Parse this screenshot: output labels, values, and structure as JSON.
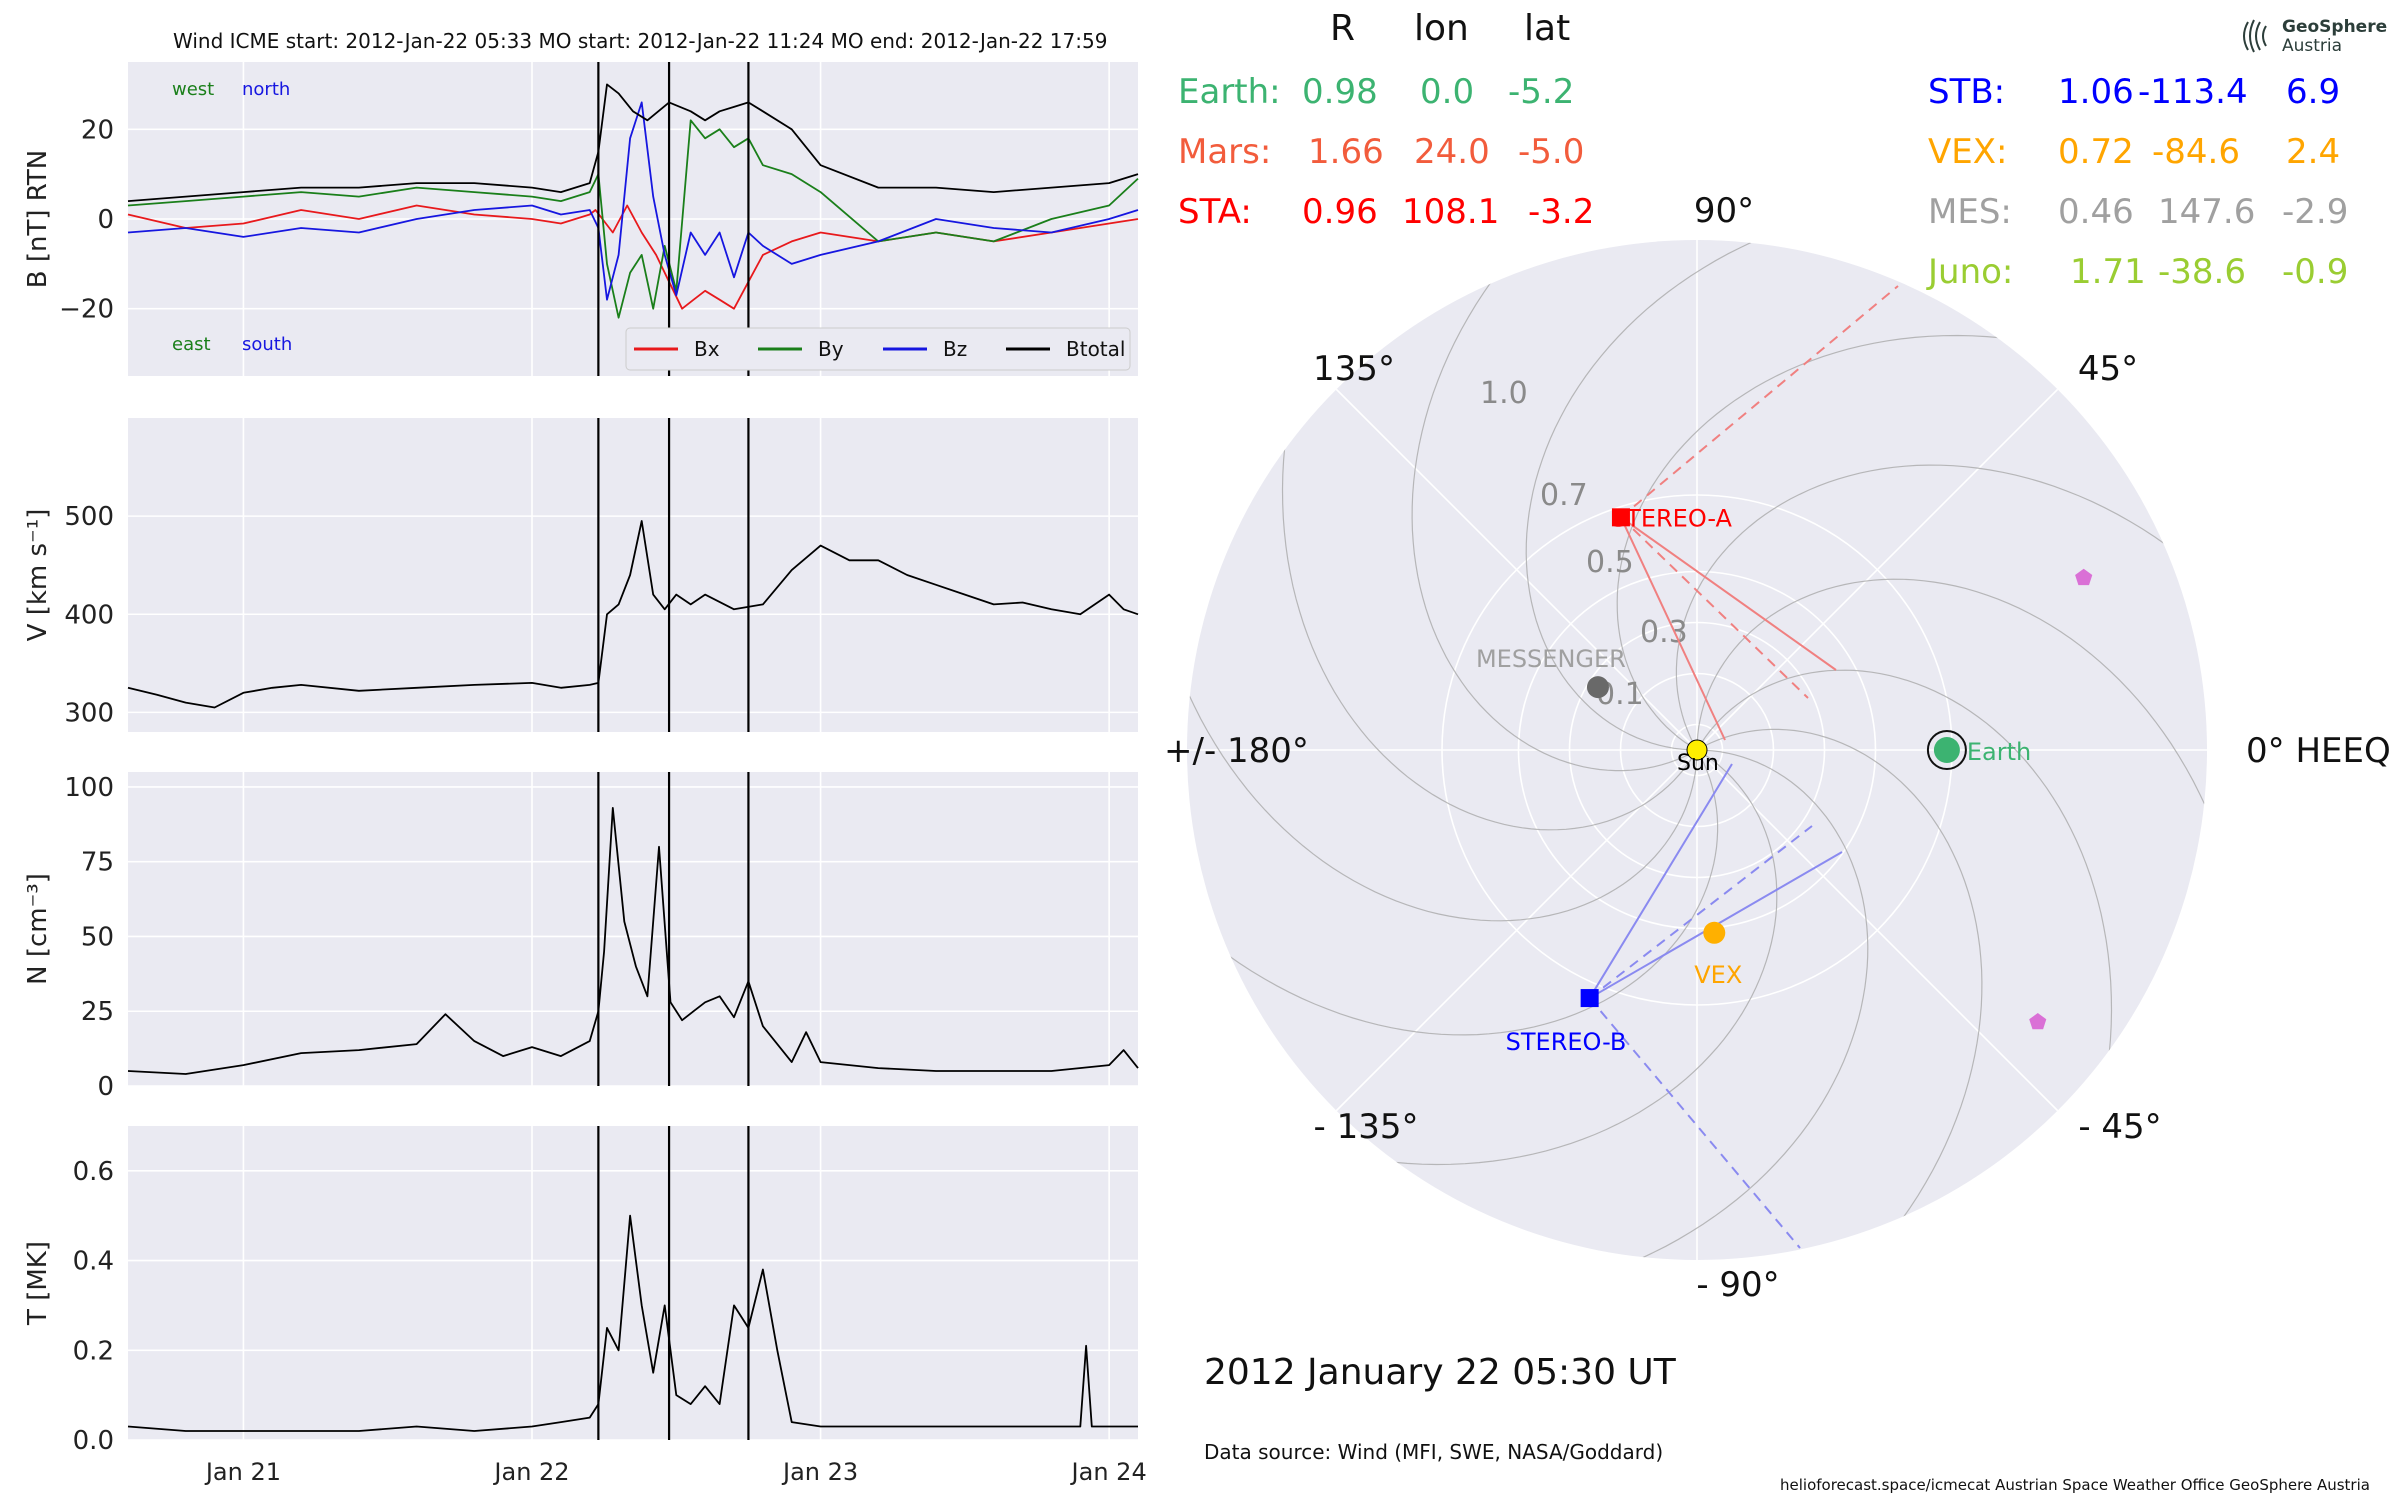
{
  "chart_data": [
    {
      "type": "line",
      "title": "Wind    ICME start: 2012-Jan-22 05:33   MO start: 2012-Jan-22 11:24   MO end: 2012-Jan-22 17:59",
      "ylabel": "B [nT] RTN",
      "ylim": [
        -35,
        35
      ],
      "yticks": [
        -20,
        0,
        20
      ],
      "xlim_days": [
        20.6,
        24.1
      ],
      "annotations": {
        "west": "west",
        "north": "north",
        "east": "east",
        "south": "south"
      },
      "legend": {
        "placement": "bottom-right",
        "entries": [
          "Bx",
          "By",
          "Bz",
          "Btotal"
        ]
      },
      "vlines_days": [
        22.23,
        22.475,
        22.75
      ],
      "series": [
        {
          "name": "Bx",
          "color": "#e8191c",
          "x": [
            20.6,
            20.8,
            21.0,
            21.2,
            21.4,
            21.6,
            21.8,
            22.0,
            22.1,
            22.2,
            22.22,
            22.28,
            22.33,
            22.38,
            22.43,
            22.475,
            22.52,
            22.56,
            22.6,
            22.65,
            22.7,
            22.75,
            22.8,
            22.9,
            23.0,
            23.2,
            23.4,
            23.6,
            23.8,
            24.0,
            24.1
          ],
          "values": [
            1,
            -2,
            -1,
            2,
            0,
            3,
            1,
            0,
            -1,
            1,
            2,
            -3,
            3,
            -3,
            -8,
            -14,
            -20,
            -18,
            -16,
            -18,
            -20,
            -14,
            -8,
            -5,
            -3,
            -5,
            -3,
            -5,
            -3,
            -1,
            0
          ]
        },
        {
          "name": "By",
          "color": "#1a7f1a",
          "x": [
            20.6,
            20.8,
            21.0,
            21.2,
            21.4,
            21.6,
            21.8,
            22.0,
            22.1,
            22.2,
            22.23,
            22.26,
            22.3,
            22.34,
            22.38,
            22.42,
            22.46,
            22.5,
            22.55,
            22.6,
            22.65,
            22.7,
            22.75,
            22.8,
            22.9,
            23.0,
            23.2,
            23.4,
            23.6,
            23.8,
            24.0,
            24.1
          ],
          "values": [
            3,
            4,
            5,
            6,
            5,
            7,
            6,
            5,
            4,
            6,
            10,
            -10,
            -22,
            -12,
            -8,
            -20,
            -6,
            -16,
            22,
            18,
            20,
            16,
            18,
            12,
            10,
            6,
            -5,
            -3,
            -5,
            0,
            3,
            9
          ]
        },
        {
          "name": "Bz",
          "color": "#1616e0",
          "x": [
            20.6,
            20.8,
            21.0,
            21.2,
            21.4,
            21.6,
            21.8,
            22.0,
            22.1,
            22.2,
            22.23,
            22.26,
            22.3,
            22.34,
            22.38,
            22.42,
            22.46,
            22.5,
            22.55,
            22.6,
            22.65,
            22.7,
            22.75,
            22.8,
            22.9,
            23.0,
            23.2,
            23.4,
            23.6,
            23.8,
            24.0,
            24.1
          ],
          "values": [
            -3,
            -2,
            -4,
            -2,
            -3,
            0,
            2,
            3,
            1,
            2,
            -2,
            -18,
            -8,
            18,
            26,
            5,
            -8,
            -17,
            -3,
            -8,
            -3,
            -13,
            -3,
            -6,
            -10,
            -8,
            -5,
            0,
            -2,
            -3,
            0,
            2
          ]
        },
        {
          "name": "Btotal",
          "color": "#000000",
          "x": [
            20.6,
            20.8,
            21.0,
            21.2,
            21.4,
            21.6,
            21.8,
            22.0,
            22.1,
            22.2,
            22.23,
            22.26,
            22.3,
            22.35,
            22.4,
            22.475,
            22.55,
            22.6,
            22.65,
            22.7,
            22.75,
            22.8,
            22.9,
            23.0,
            23.2,
            23.4,
            23.6,
            23.8,
            24.0,
            24.1
          ],
          "values": [
            4,
            5,
            6,
            7,
            7,
            8,
            8,
            7,
            6,
            8,
            15,
            30,
            28,
            24,
            22,
            26,
            24,
            22,
            24,
            25,
            26,
            24,
            20,
            12,
            7,
            7,
            6,
            7,
            8,
            10
          ]
        }
      ]
    },
    {
      "type": "line",
      "ylabel": "V [km s⁻¹]",
      "ylim": [
        280,
        600
      ],
      "yticks": [
        300,
        400,
        500
      ],
      "xlim_days": [
        20.6,
        24.1
      ],
      "vlines_days": [
        22.23,
        22.475,
        22.75
      ],
      "series": [
        {
          "color": "#000000",
          "x": [
            20.6,
            20.7,
            20.8,
            20.9,
            21.0,
            21.1,
            21.2,
            21.4,
            21.6,
            21.8,
            22.0,
            22.1,
            22.2,
            22.23,
            22.26,
            22.3,
            22.34,
            22.38,
            22.42,
            22.46,
            22.5,
            22.55,
            22.6,
            22.7,
            22.8,
            22.9,
            23.0,
            23.1,
            23.2,
            23.3,
            23.4,
            23.5,
            23.6,
            23.7,
            23.8,
            23.9,
            24.0,
            24.05,
            24.1
          ],
          "values": [
            325,
            318,
            310,
            305,
            320,
            325,
            328,
            322,
            325,
            328,
            330,
            325,
            328,
            330,
            400,
            410,
            440,
            495,
            420,
            405,
            420,
            410,
            420,
            405,
            410,
            445,
            470,
            455,
            455,
            440,
            430,
            420,
            410,
            412,
            405,
            400,
            420,
            405,
            400
          ]
        }
      ]
    },
    {
      "type": "line",
      "ylabel": "N [cm⁻³]",
      "ylim": [
        0,
        105
      ],
      "yticks": [
        0,
        25,
        50,
        75,
        100
      ],
      "xlim_days": [
        20.6,
        24.1
      ],
      "vlines_days": [
        22.23,
        22.475,
        22.75
      ],
      "series": [
        {
          "color": "#000000",
          "x": [
            20.6,
            20.8,
            21.0,
            21.2,
            21.4,
            21.6,
            21.7,
            21.8,
            21.9,
            22.0,
            22.1,
            22.2,
            22.23,
            22.25,
            22.28,
            22.32,
            22.36,
            22.4,
            22.44,
            22.48,
            22.52,
            22.56,
            22.6,
            22.65,
            22.7,
            22.75,
            22.8,
            22.9,
            22.95,
            23.0,
            23.2,
            23.4,
            23.6,
            23.8,
            24.0,
            24.05,
            24.1
          ],
          "values": [
            5,
            4,
            7,
            11,
            12,
            14,
            24,
            15,
            10,
            13,
            10,
            15,
            25,
            45,
            93,
            55,
            40,
            30,
            80,
            28,
            22,
            25,
            28,
            30,
            23,
            35,
            20,
            8,
            18,
            8,
            6,
            5,
            5,
            5,
            7,
            12,
            6
          ]
        }
      ]
    },
    {
      "type": "line",
      "ylabel": "T [MK]",
      "ylim": [
        0,
        0.7
      ],
      "yticks": [
        0.0,
        0.2,
        0.4,
        0.6
      ],
      "xlabel": "",
      "xticks": [
        "Jan 21",
        "Jan 22",
        "Jan 23",
        "Jan 24"
      ],
      "xtick_days": [
        21,
        22,
        23,
        24
      ],
      "xlim_days": [
        20.6,
        24.1
      ],
      "vlines_days": [
        22.23,
        22.475,
        22.75
      ],
      "series": [
        {
          "color": "#000000",
          "x": [
            20.6,
            20.8,
            21.0,
            21.2,
            21.4,
            21.6,
            21.8,
            22.0,
            22.1,
            22.2,
            22.23,
            22.26,
            22.3,
            22.34,
            22.38,
            22.42,
            22.46,
            22.5,
            22.55,
            22.6,
            22.65,
            22.7,
            22.75,
            22.8,
            22.85,
            22.9,
            23.0,
            23.2,
            23.4,
            23.6,
            23.8,
            23.9,
            23.92,
            23.94,
            24.0,
            24.1
          ],
          "values": [
            0.03,
            0.02,
            0.02,
            0.02,
            0.02,
            0.03,
            0.02,
            0.03,
            0.04,
            0.05,
            0.08,
            0.25,
            0.2,
            0.5,
            0.3,
            0.15,
            0.3,
            0.1,
            0.08,
            0.12,
            0.08,
            0.3,
            0.25,
            0.38,
            0.2,
            0.04,
            0.03,
            0.03,
            0.03,
            0.03,
            0.03,
            0.03,
            0.21,
            0.03,
            0.03,
            0.03
          ]
        }
      ]
    },
    {
      "type": "scatter",
      "subtype": "polar",
      "grid": true,
      "radial_ticks": [
        "0.1",
        "0.3",
        "0.5",
        "0.7",
        "1.0"
      ],
      "angle_labels": [
        {
          "deg": 0,
          "label": "0° HEEQ"
        },
        {
          "deg": 45,
          "label": "45°"
        },
        {
          "deg": 90,
          "label": "90°"
        },
        {
          "deg": 135,
          "label": "135°"
        },
        {
          "deg": 180,
          "label": "+/- 180°"
        },
        {
          "deg": -135,
          "label": "- 135°"
        },
        {
          "deg": -90,
          "label": "- 90°"
        },
        {
          "deg": -45,
          "label": "- 45°"
        }
      ],
      "points": [
        {
          "name": "Sun",
          "r": 0,
          "lon": 0,
          "color": "#ffee00",
          "marker": "circle",
          "label": "Sun",
          "label_color": "#000000"
        },
        {
          "name": "Earth",
          "r": 0.98,
          "lon": 0.0,
          "color": "#3cb371",
          "marker": "circle",
          "label": "Earth",
          "label_color": "#3cb371"
        },
        {
          "name": "STEREO-A",
          "r": 0.96,
          "lon": 108.1,
          "color": "#ff0000",
          "marker": "square",
          "label": "STEREO-A",
          "label_color": "#ff0000"
        },
        {
          "name": "STEREO-B",
          "r": 1.06,
          "lon": -113.4,
          "color": "#0000ff",
          "marker": "square",
          "label": "STEREO-B",
          "label_color": "#0000ff"
        },
        {
          "name": "MESSENGER",
          "r": 0.46,
          "lon": 147.6,
          "color": "#696969",
          "marker": "circle",
          "label": "MESSENGER",
          "label_color": "#a0a0a0"
        },
        {
          "name": "VEX",
          "r": 0.72,
          "lon": -84.6,
          "color": "#ffb000",
          "marker": "circle",
          "label": "VEX",
          "label_color": "#ffa500"
        },
        {
          "name": "Mars",
          "r": 1.66,
          "lon": 24.0,
          "color": "#da70d6",
          "marker": "pentagon",
          "label": "",
          "label_color": ""
        },
        {
          "name": "Juno",
          "r": 1.71,
          "lon": -38.6,
          "color": "#da70d6",
          "marker": "pentagon",
          "label": "",
          "label_color": ""
        }
      ]
    }
  ],
  "positions_header": {
    "r": "R",
    "lon": "lon",
    "lat": "lat"
  },
  "positions_left": [
    {
      "name": "Earth:",
      "r": "0.98",
      "lon": "0.0",
      "lat": "-5.2",
      "color": "#3cb371"
    },
    {
      "name": "Mars:",
      "r": "1.66",
      "lon": "24.0",
      "lat": "-5.0",
      "color": "#f25c3c"
    },
    {
      "name": "STA:",
      "r": "0.96",
      "lon": "108.1",
      "lat": "-3.2",
      "color": "#ff0000"
    }
  ],
  "positions_right": [
    {
      "name": "STB:",
      "r": "1.06",
      "lon": "-113.4",
      "lat": "6.9",
      "color": "#0000ff"
    },
    {
      "name": "VEX:",
      "r": "0.72",
      "lon": "-84.6",
      "lat": "2.4",
      "color": "#ffa500"
    },
    {
      "name": "MES:",
      "r": "0.46",
      "lon": "147.6",
      "lat": "-2.9",
      "color": "#a0a0a0"
    },
    {
      "name": "Juno:",
      "r": "1.71",
      "lon": "-38.6",
      "lat": "-0.9",
      "color": "#9acd32"
    }
  ],
  "footer": {
    "date": "2012 January 22  05:30 UT",
    "source": "Data source: Wind (MFI, SWE, NASA/Goddard)",
    "credits": "helioforecast.space/icmecat   Austrian Space Weather Office   GeoSphere Austria"
  },
  "logo": {
    "line1": "GeoSphere",
    "line2": "Austria"
  }
}
